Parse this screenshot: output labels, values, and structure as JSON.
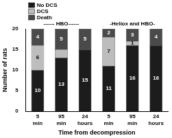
{
  "chart_data": {
    "type": "bar",
    "stacked": true,
    "y_label": "Number of rats",
    "x_label": "Time from decompression",
    "group_labels": [
      "------ HBO------",
      "-Heliox and HBO-"
    ],
    "categories": [
      "5 min",
      "95 min",
      "24 hours",
      "5 min",
      "95 min",
      "24 hours"
    ],
    "series": [
      {
        "name": "No DCS",
        "color": "#1c1c1c",
        "values": [
          10,
          13,
          15,
          11,
          16,
          16
        ],
        "value_labels": [
          "10",
          "13",
          "15",
          "11",
          "16",
          "16"
        ]
      },
      {
        "name": "DCS",
        "color": "#bdbdbd",
        "values": [
          6,
          2,
          0,
          7,
          1,
          0
        ],
        "value_labels": [
          "6",
          null,
          null,
          "7",
          "1",
          null
        ]
      },
      {
        "name": "Death",
        "color": "#4a4a4a",
        "values": [
          4,
          5,
          5,
          2,
          3,
          4
        ],
        "value_labels": [
          "4",
          "5",
          "5",
          "2",
          "3",
          "4"
        ]
      }
    ],
    "ylim": [
      0,
      20
    ],
    "yticks": [
      0,
      5,
      10,
      15,
      20
    ],
    "grid": false,
    "legend": "top-left",
    "data_labels": true
  }
}
